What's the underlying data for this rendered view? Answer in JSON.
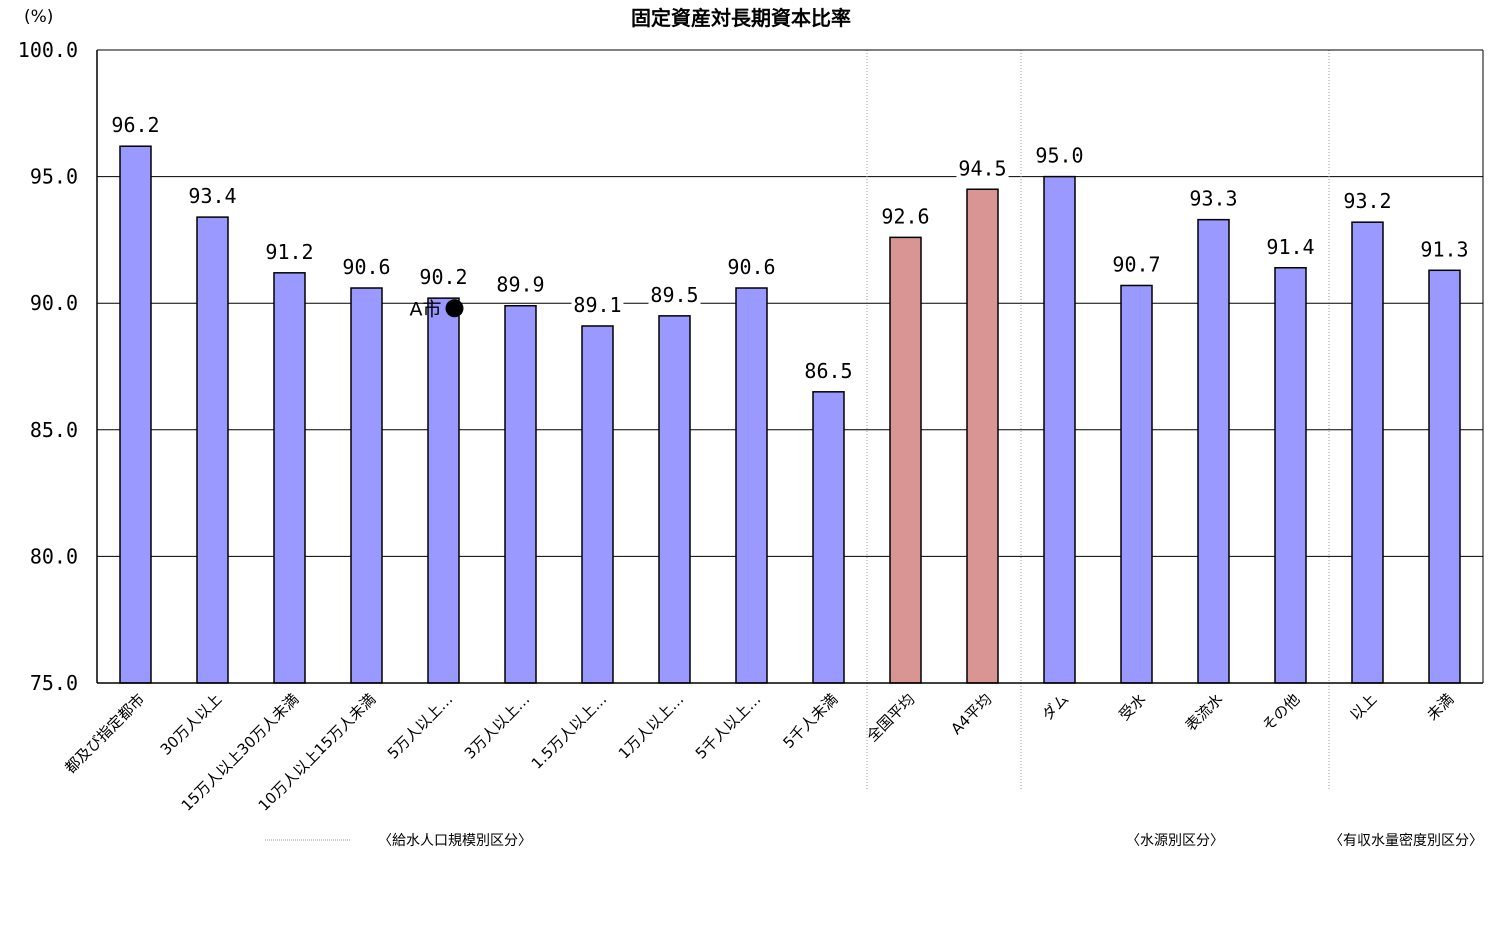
{
  "chart_data": {
    "type": "bar",
    "title": "固定資産対長期資本比率",
    "unit_label": "(%)",
    "ylim": [
      75.0,
      100.0
    ],
    "yticks": [
      "100.0",
      "95.0",
      "90.0",
      "85.0",
      "80.0",
      "75.0"
    ],
    "grid": true,
    "categories": [
      "都及び指定都市",
      "30万人以上",
      "15万人以上30万人未満",
      "10万人以上15万人未満",
      "5万人以上…",
      "3万人以上…",
      "1.5万人以上…",
      "1万人以上…",
      "5千人以上…",
      "5千人未満",
      "全国平均",
      "A4平均",
      "ダム",
      "受水",
      "表流水",
      "その他",
      "以上",
      "未満"
    ],
    "values": [
      96.2,
      93.4,
      91.2,
      90.6,
      90.2,
      89.9,
      89.1,
      89.5,
      90.6,
      86.5,
      92.6,
      94.5,
      95.0,
      90.7,
      93.3,
      91.4,
      93.2,
      91.3
    ],
    "value_labels": [
      "96.2",
      "93.4",
      "91.2",
      "90.6",
      "90.2",
      "89.9",
      "89.1",
      "89.5",
      "90.6",
      "86.5",
      "92.6",
      "94.5",
      "95.0",
      "90.7",
      "93.3",
      "91.4",
      "93.2",
      "91.3"
    ],
    "bar_colors": [
      "#9999FF",
      "#9999FF",
      "#9999FF",
      "#9999FF",
      "#9999FF",
      "#9999FF",
      "#9999FF",
      "#9999FF",
      "#9999FF",
      "#9999FF",
      "#D99594",
      "#D99594",
      "#9999FF",
      "#9999FF",
      "#9999FF",
      "#9999FF",
      "#9999FF",
      "#9999FF"
    ],
    "marker": {
      "label": "A市",
      "category_index": 4,
      "value": 89.8
    },
    "group_labels": [
      "〈給水人口規模別区分〉",
      "〈水源別区分〉",
      "〈有収水量密度別区分〉"
    ]
  }
}
